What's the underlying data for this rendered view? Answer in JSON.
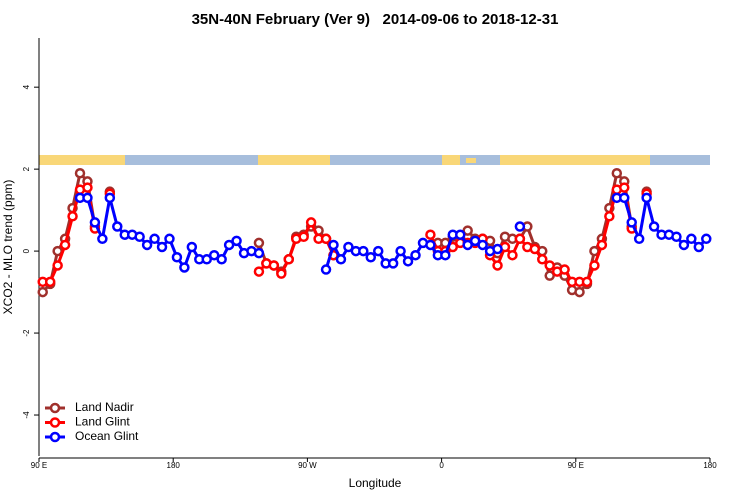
{
  "chart_data": {
    "type": "line",
    "title": "35N-40N February (Ver 9)   2014-09-06 to 2018-12-31",
    "x_label": "Longitude",
    "y_label": "XCO2 - MLO trend (ppm)",
    "xlim": [
      90,
      540
    ],
    "ylim": [
      -5,
      5.2
    ],
    "xticks": [
      {
        "value": 90,
        "label": "90 E"
      },
      {
        "value": 180,
        "label": "180"
      },
      {
        "value": 270,
        "label": "90 W"
      },
      {
        "value": 360,
        "label": "0"
      },
      {
        "value": 450,
        "label": "90 E"
      },
      {
        "value": 540,
        "label": "180"
      }
    ],
    "yticks": [
      -4,
      -2,
      0,
      2,
      4
    ],
    "legend": "bottom-left",
    "x": [
      92.5,
      97.5,
      102.5,
      107.5,
      112.5,
      117.5,
      122.5,
      127.5,
      132.5,
      137.5,
      142.5,
      147.5,
      152.5,
      157.5,
      162.5,
      167.5,
      172.5,
      177.5,
      182.5,
      187.5,
      192.5,
      197.5,
      202.5,
      207.5,
      212.5,
      217.5,
      222.5,
      227.5,
      232.5,
      237.5,
      242.5,
      247.5,
      252.5,
      257.5,
      262.5,
      267.5,
      272.5,
      277.5,
      282.5,
      287.5,
      292.5,
      297.5,
      302.5,
      307.5,
      312.5,
      317.5,
      322.5,
      327.5,
      332.5,
      337.5,
      342.5,
      347.5,
      352.5,
      357.5,
      362.5,
      367.5,
      372.5,
      377.5,
      382.5,
      387.5,
      392.5,
      397.5,
      402.5,
      407.5,
      412.5,
      417.5,
      422.5,
      427.5,
      432.5,
      437.5,
      442.5,
      447.5,
      452.5,
      457.5,
      462.5,
      467.5,
      472.5,
      477.5,
      482.5,
      487.5,
      492.5,
      497.5,
      502.5,
      507.5,
      512.5,
      517.5,
      522.5,
      527.5,
      532.5,
      537.5
    ],
    "series": [
      {
        "name": "Land Nadir",
        "color": "#a0302c",
        "values": [
          -1.0,
          -0.8,
          0.0,
          0.3,
          1.05,
          1.9,
          1.7,
          0.6,
          null,
          1.45,
          null,
          null,
          null,
          null,
          null,
          null,
          null,
          null,
          null,
          null,
          null,
          null,
          null,
          null,
          null,
          null,
          null,
          null,
          null,
          0.2,
          -0.3,
          -0.35,
          -0.5,
          -0.2,
          0.35,
          0.4,
          0.6,
          0.5,
          0.3,
          -0.1,
          null,
          null,
          null,
          null,
          null,
          null,
          null,
          null,
          null,
          null,
          null,
          null,
          null,
          0.2,
          0.2,
          0.35,
          0.3,
          0.5,
          0.3,
          0.3,
          0.25,
          -0.05,
          0.35,
          0.3,
          0.3,
          0.6,
          0.1,
          0.0,
          -0.6,
          -0.4,
          -0.6,
          -0.95,
          -1.0,
          -0.8,
          0.0,
          0.3,
          1.05,
          1.9,
          1.7,
          0.6,
          null,
          1.45,
          null,
          null,
          null,
          null,
          null,
          null,
          null,
          null
        ]
      },
      {
        "name": "Land Glint",
        "color": "#ff0000",
        "values": [
          -0.75,
          -0.75,
          -0.35,
          0.15,
          0.85,
          1.5,
          1.55,
          0.55,
          null,
          1.4,
          null,
          null,
          null,
          null,
          null,
          null,
          null,
          null,
          null,
          null,
          null,
          null,
          null,
          null,
          null,
          null,
          null,
          null,
          null,
          -0.5,
          -0.3,
          -0.35,
          -0.55,
          -0.2,
          0.3,
          0.35,
          0.7,
          0.3,
          0.3,
          -0.1,
          null,
          null,
          null,
          null,
          null,
          null,
          null,
          null,
          null,
          null,
          null,
          null,
          0.4,
          0.0,
          0.0,
          0.1,
          0.2,
          0.2,
          0.2,
          0.3,
          -0.1,
          -0.35,
          0.1,
          -0.1,
          0.3,
          0.1,
          0.05,
          -0.2,
          -0.35,
          -0.5,
          -0.45,
          -0.75,
          -0.75,
          -0.75,
          -0.35,
          0.15,
          0.85,
          1.5,
          1.55,
          0.55,
          null,
          1.4,
          null,
          null,
          null,
          null,
          null,
          null,
          null,
          null
        ]
      },
      {
        "name": "Ocean Glint",
        "color": "#0000ff",
        "values": [
          null,
          null,
          null,
          null,
          null,
          1.3,
          1.3,
          0.7,
          0.3,
          1.3,
          0.6,
          0.4,
          0.4,
          0.35,
          0.15,
          0.3,
          0.1,
          0.3,
          -0.15,
          -0.4,
          0.1,
          -0.2,
          -0.2,
          -0.1,
          -0.2,
          0.15,
          0.25,
          -0.05,
          0.0,
          -0.05,
          null,
          null,
          null,
          null,
          null,
          null,
          null,
          null,
          -0.45,
          0.15,
          -0.2,
          0.1,
          0.0,
          0.0,
          -0.15,
          0.0,
          -0.3,
          -0.3,
          0.0,
          -0.25,
          -0.1,
          0.2,
          0.15,
          -0.1,
          -0.1,
          0.4,
          0.4,
          0.15,
          0.25,
          0.15,
          0.0,
          0.05,
          null,
          null,
          0.6,
          null,
          null,
          null,
          null,
          null,
          null,
          null,
          null,
          null,
          null,
          null,
          null,
          1.3,
          1.3,
          0.7,
          0.3,
          1.3,
          0.6,
          0.4,
          0.4,
          0.35,
          0.15,
          0.3,
          0.1,
          0.3
        ]
      }
    ]
  }
}
